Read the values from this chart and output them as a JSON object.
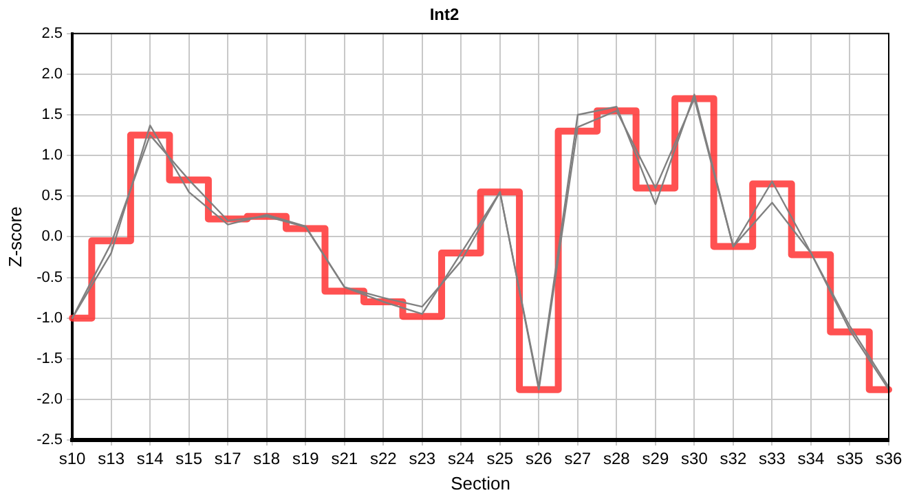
{
  "chart_data": {
    "type": "line",
    "title": "Int2",
    "xlabel": "Section",
    "ylabel": "Z-score",
    "categories": [
      "s10",
      "s13",
      "s14",
      "s15",
      "s17",
      "s18",
      "s19",
      "s21",
      "s22",
      "s23",
      "s24",
      "s25",
      "s26",
      "s27",
      "s28",
      "s29",
      "s30",
      "s32",
      "s33",
      "s34",
      "s35",
      "s36"
    ],
    "series": [
      {
        "type": "line",
        "color": "#808080",
        "values": [
          -1.0,
          -0.2,
          1.37,
          0.55,
          0.15,
          0.27,
          0.13,
          -0.62,
          -0.75,
          -0.86,
          -0.3,
          0.55,
          -1.85,
          1.5,
          1.6,
          0.4,
          1.75,
          -0.12,
          0.42,
          -0.2,
          -1.1,
          -1.85
        ]
      },
      {
        "type": "line",
        "color": "#808080",
        "values": [
          -1.0,
          -0.08,
          1.25,
          0.7,
          0.2,
          0.25,
          0.12,
          -0.62,
          -0.8,
          -0.95,
          -0.2,
          0.55,
          -1.88,
          1.35,
          1.55,
          0.6,
          1.7,
          -0.12,
          0.68,
          -0.2,
          -1.15,
          -1.88
        ]
      },
      {
        "type": "step",
        "color": "#ff3333",
        "values": [
          -1.0,
          -0.05,
          1.25,
          0.7,
          0.22,
          0.25,
          0.1,
          -0.67,
          -0.8,
          -0.98,
          -0.2,
          0.55,
          -1.88,
          1.3,
          1.55,
          0.6,
          1.7,
          -0.12,
          0.65,
          -0.22,
          -1.17,
          -1.88
        ]
      }
    ],
    "ylim": [
      -2.5,
      2.5
    ],
    "yticks": [
      {
        "value": -2.5,
        "label": "-2.5"
      },
      {
        "value": -2,
        "label": "-2.0"
      },
      {
        "value": -1.5,
        "label": "-1.5"
      },
      {
        "value": -1,
        "label": "-1.0"
      },
      {
        "value": -0.5,
        "label": "-0.5"
      },
      {
        "value": 0,
        "label": "0.0"
      },
      {
        "value": 0.5,
        "label": "0.5"
      },
      {
        "value": 1,
        "label": "1.0"
      },
      {
        "value": 1.5,
        "label": "1.5"
      },
      {
        "value": 2,
        "label": "2.0"
      },
      {
        "value": 2.5,
        "label": "2.5"
      }
    ],
    "grid": true,
    "legend": false,
    "marker": "none"
  }
}
